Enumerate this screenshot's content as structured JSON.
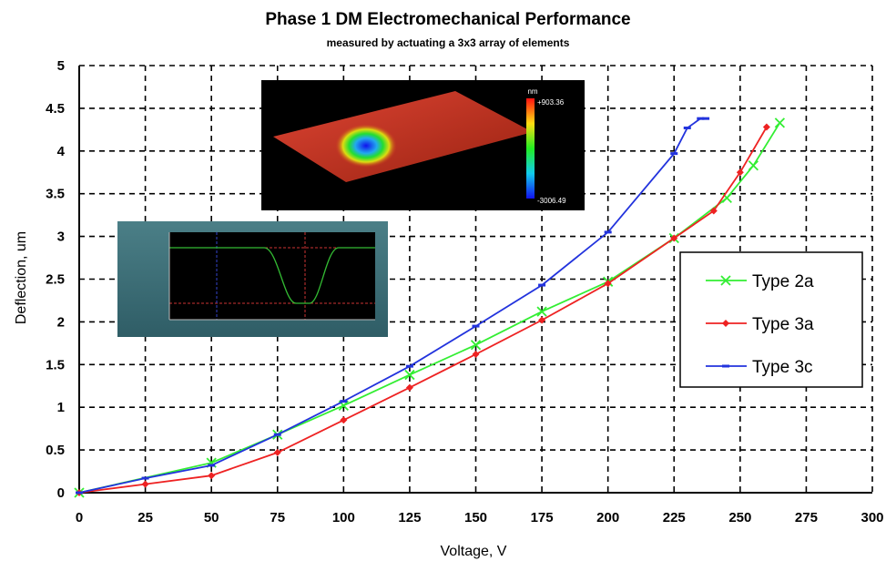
{
  "chart_data": {
    "type": "line",
    "title": "Phase 1 DM Electromechanical Performance",
    "subtitle": "measured by actuating a 3x3 array of elements",
    "xlabel": "Voltage, V",
    "ylabel": "Deflection, um",
    "xlim": [
      0,
      300
    ],
    "ylim": [
      0,
      5
    ],
    "x_ticks": [
      0,
      25,
      50,
      75,
      100,
      125,
      150,
      175,
      200,
      225,
      250,
      275,
      300
    ],
    "x_tick_labels": [
      "0",
      "25",
      "50",
      "75",
      "100",
      "125",
      "150",
      "175",
      "200",
      "225",
      "250",
      "275",
      "300"
    ],
    "y_ticks": [
      0,
      0.5,
      1,
      1.5,
      2,
      2.5,
      3,
      3.5,
      4,
      4.5,
      5
    ],
    "y_tick_labels": [
      "0",
      "0.5",
      "1",
      "1.5",
      "2",
      "2.5",
      "3",
      "3.5",
      "4",
      "4.5",
      "5"
    ],
    "grid": true,
    "legend_position": "right",
    "series": [
      {
        "name": "Type 2a",
        "color": "#33ee33",
        "marker": "x",
        "x": [
          0,
          50,
          75,
          100,
          125,
          150,
          175,
          200,
          225,
          245,
          255,
          265
        ],
        "y": [
          0,
          0.35,
          0.68,
          1.02,
          1.38,
          1.73,
          2.12,
          2.47,
          2.98,
          3.45,
          3.83,
          4.33
        ]
      },
      {
        "name": "Type 3a",
        "color": "#ee2222",
        "marker": "diamond",
        "x": [
          0,
          25,
          50,
          75,
          100,
          125,
          150,
          175,
          200,
          225,
          240,
          250,
          260
        ],
        "y": [
          0,
          0.1,
          0.2,
          0.47,
          0.85,
          1.23,
          1.62,
          2.02,
          2.45,
          2.98,
          3.3,
          3.75,
          4.28
        ]
      },
      {
        "name": "Type 3c",
        "color": "#2233dd",
        "marker": "dash",
        "x": [
          0,
          25,
          50,
          75,
          100,
          125,
          150,
          175,
          200,
          225,
          230,
          235,
          237
        ],
        "y": [
          0,
          0.17,
          0.32,
          0.68,
          1.07,
          1.48,
          1.95,
          2.43,
          3.05,
          3.97,
          4.27,
          4.38,
          4.38
        ]
      }
    ],
    "insets": {
      "surface_plot": {
        "colorbar_top": "+903.36",
        "colorbar_bottom": "-3006.49",
        "colorbar_unit": "nm"
      }
    }
  }
}
